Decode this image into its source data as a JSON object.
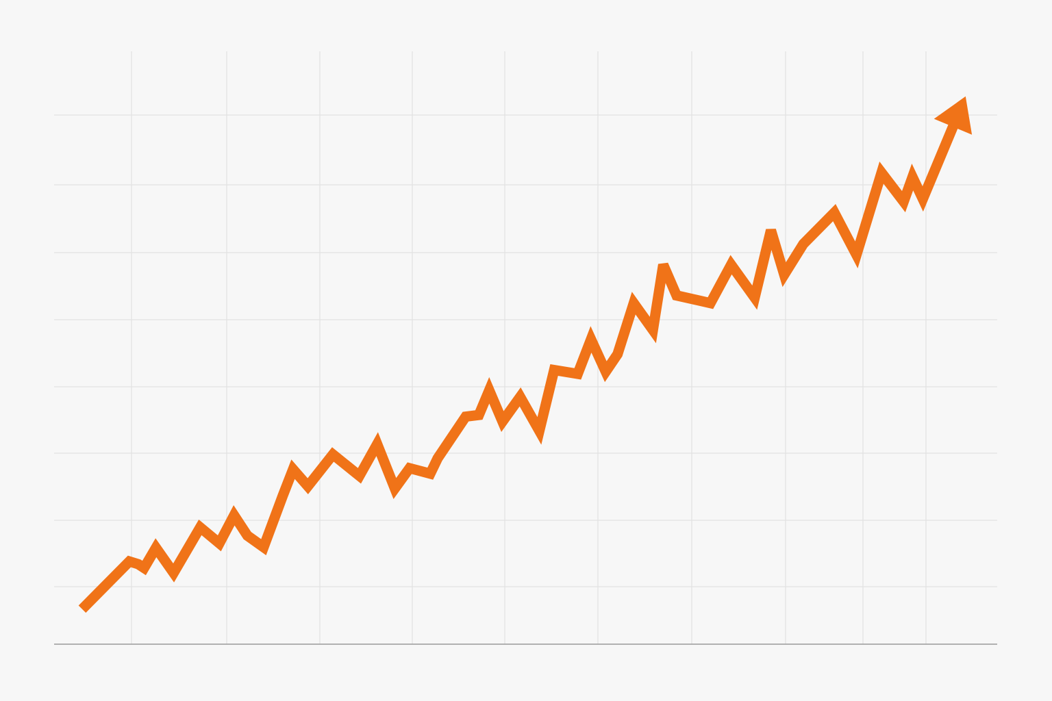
{
  "colors": {
    "background": "#f7f7f7",
    "line": "#f07318",
    "grid": "#e2e2e2",
    "axis": "#9a9a9a"
  },
  "chart_data": {
    "type": "line",
    "title": "",
    "xlabel": "",
    "ylabel": "",
    "grid": true,
    "legend": "none",
    "arrow_head": true,
    "xlim": [
      0,
      60
    ],
    "ylim": [
      0,
      100
    ],
    "series": [
      {
        "name": "",
        "x": [
          0,
          3.2,
          3.8,
          4.2,
          5,
          6.2,
          8,
          9.3,
          10.3,
          11.2,
          12.3,
          13.6,
          14.3,
          15.3,
          17,
          18.8,
          20,
          21.2,
          22.2,
          23.6,
          24.1,
          26,
          26.9,
          27.6,
          28.5,
          29.7,
          31,
          32,
          33.6,
          34.5,
          35.5,
          36.3,
          37.4,
          38.7,
          39.4,
          40.3,
          42.6,
          44,
          45.6,
          46.7,
          47.6,
          48.9,
          51,
          52.5,
          54.2,
          55.7,
          56.3,
          57,
          59.9
        ],
        "y": [
          2.9,
          11.6,
          11.1,
          10.4,
          14.1,
          9.5,
          17.8,
          14.9,
          20,
          16.3,
          14.2,
          23.6,
          28.4,
          25.3,
          31.1,
          27.2,
          33,
          24.9,
          28.6,
          27.6,
          30.4,
          38,
          38.3,
          42.8,
          37.1,
          41.6,
          35.4,
          46.5,
          45.8,
          52.1,
          46.2,
          49.4,
          58.7,
          53.8,
          65.7,
          60.1,
          58.7,
          65.7,
          59.7,
          72,
          63.9,
          69.5,
          75.2,
          67.5,
          82.5,
          77.2,
          81.7,
          77.7,
          96.4
        ]
      }
    ]
  }
}
